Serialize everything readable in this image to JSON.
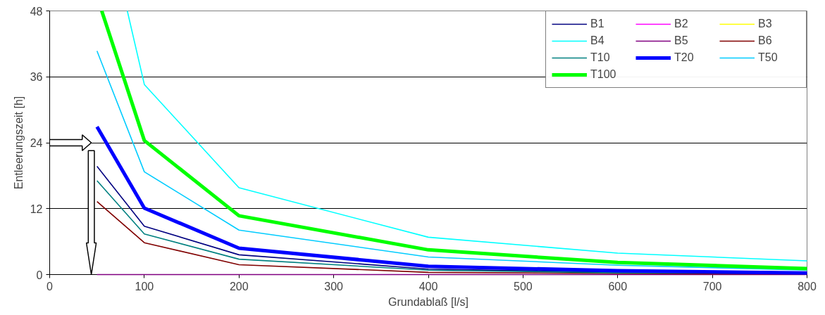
{
  "chart_data": {
    "type": "line",
    "xlabel": "Grundablaß [l/s]",
    "ylabel": "Entleerungszeit [h]",
    "x": [
      50,
      100,
      200,
      400,
      600,
      800
    ],
    "xlim": [
      0,
      800
    ],
    "xticks": [
      0,
      100,
      200,
      300,
      400,
      500,
      600,
      700,
      800
    ],
    "ylim": [
      0,
      48
    ],
    "yticks": [
      0,
      12,
      24,
      36,
      48
    ],
    "grid": "y",
    "legend": "top right",
    "marker": "none",
    "line_style": "solid",
    "series": [
      {
        "name": "B1",
        "color": "#000080",
        "values": [
          19.7,
          8.8,
          3.6,
          1.0,
          0.4,
          0.2
        ]
      },
      {
        "name": "B2",
        "color": "#ff00ff",
        "values": [
          null,
          null,
          null,
          null,
          null,
          null
        ]
      },
      {
        "name": "B3",
        "color": "#ffff00",
        "values": [
          null,
          null,
          null,
          null,
          null,
          null
        ]
      },
      {
        "name": "B4",
        "color": "#00ffff",
        "x": [
          82,
          100,
          200,
          400,
          600,
          800
        ],
        "values": [
          48,
          34.6,
          15.8,
          6.8,
          3.9,
          2.5
        ]
      },
      {
        "name": "B5",
        "color": "#800080",
        "values": [
          0,
          0,
          0,
          0,
          0,
          0
        ]
      },
      {
        "name": "B6",
        "color": "#800000",
        "values": [
          13.3,
          5.8,
          1.8,
          0.4,
          0.2,
          0.1
        ]
      },
      {
        "name": "T10",
        "color": "#008080",
        "values": [
          17.1,
          7.4,
          2.8,
          0.8,
          0.3,
          0.2
        ]
      },
      {
        "name": "T20",
        "color": "#0000ff",
        "values": [
          26.9,
          12.1,
          4.8,
          1.5,
          0.7,
          0.3
        ]
      },
      {
        "name": "T50",
        "color": "#00ccff",
        "values": [
          40.7,
          18.7,
          8.1,
          3.2,
          1.7,
          0.8
        ]
      },
      {
        "name": "T100",
        "color": "#00ff00",
        "x": [
          55,
          100,
          200,
          400,
          600,
          800
        ],
        "values": [
          48,
          24.4,
          10.7,
          4.5,
          2.2,
          1.1
        ]
      }
    ]
  }
}
